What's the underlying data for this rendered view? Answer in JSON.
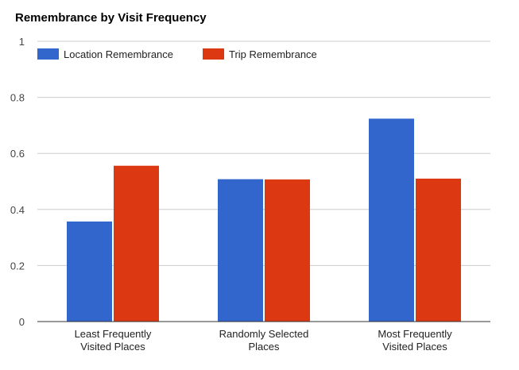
{
  "chart_data": {
    "type": "bar",
    "title": "Remembrance by Visit Frequency",
    "xlabel": "",
    "ylabel": "",
    "categories": [
      [
        "Least Frequently",
        "Visited Places"
      ],
      [
        "Randomly Selected",
        "Places"
      ],
      [
        "Most Frequently",
        "Visited Places"
      ]
    ],
    "series": [
      {
        "name": "Location Remembrance",
        "color": "#3366cc",
        "values": [
          0.357,
          0.508,
          0.724
        ]
      },
      {
        "name": "Trip Remembrance",
        "color": "#dc3912",
        "values": [
          0.556,
          0.507,
          0.51
        ]
      }
    ],
    "ylim": [
      0,
      1
    ],
    "yticks": [
      "0",
      "0.2",
      "0.4",
      "0.6",
      "0.8",
      "1"
    ],
    "ytick_values": [
      0,
      0.2,
      0.4,
      0.6,
      0.8,
      1
    ],
    "grid": true,
    "legend_position": "top-left"
  }
}
